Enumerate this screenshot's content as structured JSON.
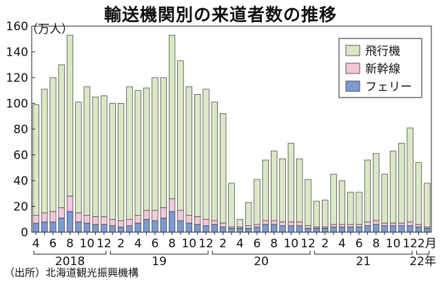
{
  "chart_data": {
    "type": "bar",
    "stacked": true,
    "title": "輸送機関別の来道者数の推移",
    "y_unit": "（万人）",
    "ylim": [
      0,
      160
    ],
    "y_ticks": [
      0,
      20,
      40,
      60,
      80,
      100,
      120,
      140,
      160
    ],
    "x_tick_labels": [
      "4",
      "6",
      "8",
      "10",
      "12",
      "2",
      "4",
      "6",
      "8",
      "10",
      "12",
      "2",
      "4",
      "6",
      "8",
      "10",
      "12",
      "2",
      "4",
      "6",
      "8",
      "10",
      "12",
      "2月"
    ],
    "year_labels": [
      "2018",
      "19",
      "20",
      "21",
      "22年"
    ],
    "grid": false,
    "legend_position": "top-right",
    "categories": [
      "2018-04",
      "2018-05",
      "2018-06",
      "2018-07",
      "2018-08",
      "2018-09",
      "2018-10",
      "2018-11",
      "2018-12",
      "2019-01",
      "2019-02",
      "2019-03",
      "2019-04",
      "2019-05",
      "2019-06",
      "2019-07",
      "2019-08",
      "2019-09",
      "2019-10",
      "2019-11",
      "2019-12",
      "2020-01",
      "2020-02",
      "2020-03",
      "2020-04",
      "2020-05",
      "2020-06",
      "2020-07",
      "2020-08",
      "2020-09",
      "2020-10",
      "2020-11",
      "2020-12",
      "2021-01",
      "2021-02",
      "2021-03",
      "2021-04",
      "2021-05",
      "2021-06",
      "2021-07",
      "2021-08",
      "2021-09",
      "2021-10",
      "2021-11",
      "2021-12",
      "2022-01",
      "2022-02"
    ],
    "series": [
      {
        "name": "フェリー",
        "color": "#7b9bd2",
        "values": [
          7,
          8,
          8,
          11,
          16,
          8,
          7,
          6,
          6,
          5,
          4,
          5,
          7,
          10,
          9,
          11,
          16,
          9,
          7,
          6,
          5,
          6,
          4,
          3,
          3,
          3,
          4,
          6,
          6,
          5,
          5,
          5,
          3,
          3,
          3,
          4,
          4,
          4,
          4,
          5,
          6,
          5,
          5,
          5,
          5,
          4,
          3
        ]
      },
      {
        "name": "新幹線",
        "color": "#f4c8da",
        "values": [
          6,
          7,
          8,
          8,
          12,
          7,
          6,
          6,
          6,
          5,
          5,
          5,
          6,
          7,
          8,
          8,
          10,
          8,
          6,
          6,
          5,
          3,
          3,
          1,
          1,
          2,
          2,
          3,
          3,
          3,
          3,
          3,
          2,
          1,
          1,
          2,
          2,
          2,
          2,
          3,
          3,
          2,
          2,
          2,
          3,
          2,
          1
        ]
      },
      {
        "name": "飛行機",
        "color": "#dbe8c6",
        "values": [
          86,
          96,
          104,
          111,
          125,
          86,
          100,
          93,
          94,
          90,
          91,
          103,
          97,
          95,
          103,
          101,
          127,
          116,
          100,
          95,
          101,
          92,
          85,
          34,
          6,
          18,
          35,
          47,
          54,
          49,
          61,
          49,
          36,
          20,
          21,
          39,
          34,
          25,
          25,
          48,
          52,
          38,
          56,
          62,
          73,
          48,
          34
        ]
      }
    ]
  },
  "source": "（出所）北海道観光振興機構"
}
